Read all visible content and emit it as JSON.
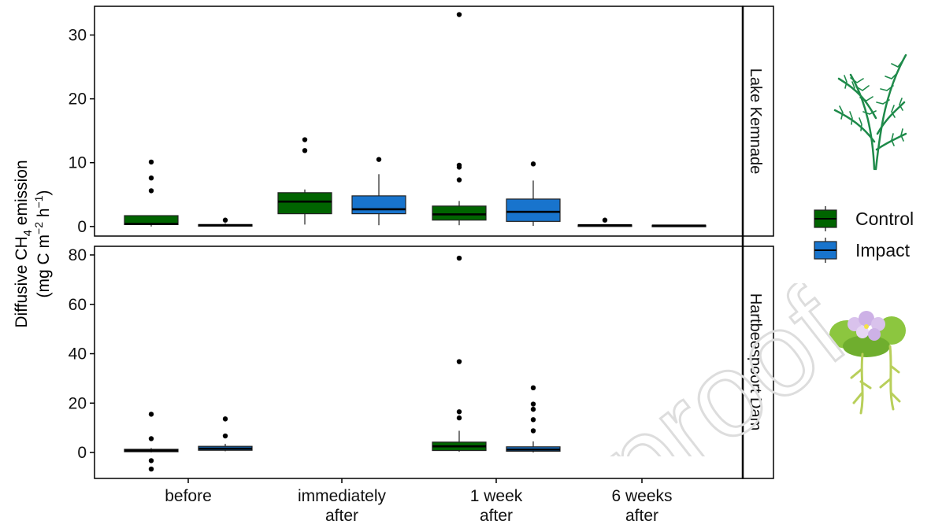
{
  "chart_data": {
    "type": "box",
    "y_axis_label": {
      "line1_prefix": "Diffusive CH",
      "line1_sub": "4",
      "line1_suffix": " emission",
      "line2_prefix": "(mg C m",
      "line2_sup1": "−2",
      "line2_mid": " h",
      "line2_sup2": "−1",
      "line2_suffix": ")"
    },
    "categories": [
      {
        "line1": "before",
        "line2": ""
      },
      {
        "line1": "immediately",
        "line2": "after"
      },
      {
        "line1": "1 week",
        "line2": "after"
      },
      {
        "line1": "6 weeks",
        "line2": "after"
      }
    ],
    "legend": [
      {
        "label": "Control",
        "color": "#006400"
      },
      {
        "label": "Impact",
        "color": "#1874CD"
      }
    ],
    "legend_position": "right",
    "grid": false,
    "panels": [
      {
        "strip": "Lake Kemnade",
        "ylim": [
          -1.5,
          34.5
        ],
        "yticks": [
          0,
          10,
          20,
          30
        ],
        "boxes": [
          {
            "category": 0,
            "group": "Control",
            "min": 0.0,
            "q1": 0.3,
            "median": 0.4,
            "q3": 1.7,
            "max": 1.7,
            "outliers": [
              5.6,
              7.6,
              10.1
            ]
          },
          {
            "category": 0,
            "group": "Impact",
            "min": 0.0,
            "q1": 0.1,
            "median": 0.2,
            "q3": 0.3,
            "max": 0.5,
            "outliers": [
              1.0
            ]
          },
          {
            "category": 1,
            "group": "Control",
            "min": 0.3,
            "q1": 2.0,
            "median": 3.9,
            "q3": 5.3,
            "max": 5.8,
            "outliers": [
              11.9,
              13.6
            ]
          },
          {
            "category": 1,
            "group": "Impact",
            "min": 0.2,
            "q1": 2.0,
            "median": 2.7,
            "q3": 4.8,
            "max": 8.2,
            "outliers": [
              10.5
            ]
          },
          {
            "category": 2,
            "group": "Control",
            "min": 0.2,
            "q1": 1.0,
            "median": 1.9,
            "q3": 3.2,
            "max": 4.0,
            "outliers": [
              7.3,
              9.3,
              9.6,
              33.2
            ]
          },
          {
            "category": 2,
            "group": "Impact",
            "min": 0.1,
            "q1": 0.8,
            "median": 2.3,
            "q3": 4.3,
            "max": 7.2,
            "outliers": [
              9.8
            ]
          },
          {
            "category": 3,
            "group": "Control",
            "min": 0.0,
            "q1": 0.1,
            "median": 0.2,
            "q3": 0.25,
            "max": 0.3,
            "outliers": [
              1.0
            ]
          },
          {
            "category": 3,
            "group": "Impact",
            "min": 0.0,
            "q1": 0.1,
            "median": 0.15,
            "q3": 0.2,
            "max": 0.25,
            "outliers": []
          }
        ]
      },
      {
        "strip": "Hartbeespoort Dam",
        "ylim": [
          -10.5,
          83.5
        ],
        "yticks": [
          0,
          20,
          40,
          60,
          80
        ],
        "boxes": [
          {
            "category": 0,
            "group": "Control",
            "min": 0.0,
            "q1": 0.3,
            "median": 0.8,
            "q3": 1.3,
            "max": 1.8,
            "outliers": [
              -6.7,
              -3.3,
              5.6,
              15.5
            ]
          },
          {
            "category": 0,
            "group": "Impact",
            "min": 0.5,
            "q1": 0.9,
            "median": 1.6,
            "q3": 2.5,
            "max": 3.5,
            "outliers": [
              6.7,
              13.6
            ]
          },
          {
            "category": 2,
            "group": "Control",
            "min": 0.3,
            "q1": 0.8,
            "median": 2.5,
            "q3": 4.2,
            "max": 8.8,
            "outliers": [
              14.0,
              16.5,
              36.8,
              78.7
            ]
          },
          {
            "category": 2,
            "group": "Impact",
            "min": 0.0,
            "q1": 0.5,
            "median": 1.2,
            "q3": 2.3,
            "max": 4.5,
            "outliers": [
              8.8,
              13.3,
              17.5,
              19.6,
              26.2
            ]
          }
        ]
      }
    ]
  },
  "watermark": "proof"
}
